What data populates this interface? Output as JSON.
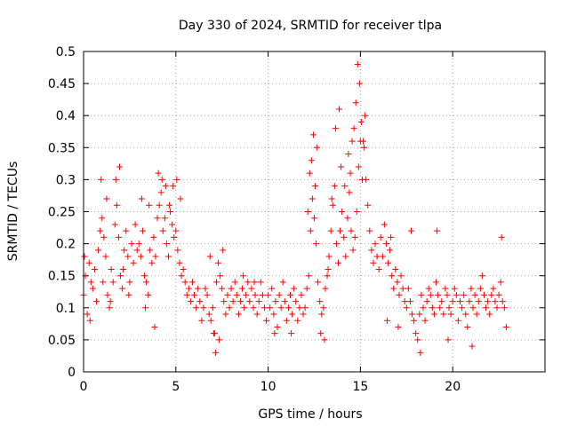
{
  "chart_data": {
    "type": "scatter",
    "title": "Day 330 of 2024, SRMTID for receiver tlpa",
    "xlabel": "GPS time / hours",
    "ylabel": "SRMTID / TECUs",
    "xlim": [
      0,
      25
    ],
    "ylim": [
      0,
      0.5
    ],
    "xticks": [
      0,
      5,
      10,
      15,
      20
    ],
    "xtick_labels": [
      "0",
      "5",
      "10",
      "15",
      "20"
    ],
    "yticks": [
      0,
      0.05,
      0.1,
      0.15,
      0.2,
      0.25,
      0.3,
      0.35,
      0.4,
      0.45,
      0.5
    ],
    "ytick_labels": [
      "0",
      "0.05",
      "0.1",
      "0.15",
      "0.2",
      "0.25",
      "0.3",
      "0.35",
      "0.4",
      "0.45",
      "0.5"
    ],
    "grid": true,
    "marker": "+",
    "color": "#ff0000",
    "series": [
      {
        "name": "SRMTID",
        "x": [
          0.0,
          0.1,
          0.2,
          0.3,
          0.4,
          0.5,
          0.6,
          0.7,
          0.8,
          0.9,
          1.0,
          1.1,
          1.2,
          1.3,
          1.4,
          1.5,
          1.6,
          1.7,
          1.8,
          1.9,
          2.0,
          2.1,
          2.2,
          2.3,
          2.4,
          2.5,
          2.6,
          2.7,
          2.8,
          2.9,
          3.0,
          3.1,
          3.2,
          3.3,
          3.4,
          3.5,
          3.6,
          3.7,
          3.8,
          3.9,
          4.0,
          4.1,
          4.2,
          4.3,
          4.4,
          4.5,
          4.6,
          4.7,
          4.8,
          4.9,
          5.0,
          5.1,
          5.2,
          5.3,
          5.4,
          5.5,
          5.6,
          5.7,
          5.8,
          5.9,
          6.0,
          6.1,
          6.2,
          6.3,
          6.4,
          6.5,
          6.6,
          6.7,
          6.8,
          6.9,
          7.0,
          7.1,
          7.2,
          7.3,
          7.4,
          7.5,
          7.6,
          7.7,
          7.8,
          7.9,
          8.0,
          8.1,
          8.2,
          8.3,
          8.4,
          8.5,
          8.6,
          8.7,
          8.8,
          8.9,
          9.0,
          9.1,
          9.2,
          9.3,
          9.4,
          9.5,
          9.6,
          9.7,
          9.8,
          9.9,
          10.0,
          10.1,
          10.2,
          10.3,
          10.4,
          10.5,
          10.6,
          10.7,
          10.8,
          10.9,
          11.0,
          11.1,
          11.2,
          11.3,
          11.4,
          11.5,
          11.6,
          11.7,
          11.8,
          11.9,
          12.0,
          12.1,
          12.2,
          12.3,
          12.4,
          12.5,
          12.6,
          12.7,
          12.8,
          12.9,
          13.0,
          13.1,
          13.2,
          13.3,
          13.4,
          13.5,
          13.6,
          13.7,
          13.8,
          13.9,
          14.0,
          14.1,
          14.2,
          14.3,
          14.4,
          14.5,
          14.6,
          14.7,
          14.8,
          14.9,
          15.0,
          15.1,
          15.2,
          15.3,
          15.4,
          15.5,
          15.6,
          15.7,
          15.8,
          15.9,
          16.0,
          16.1,
          16.2,
          16.3,
          16.4,
          16.5,
          16.6,
          16.7,
          16.8,
          16.9,
          17.0,
          17.1,
          17.2,
          17.3,
          17.4,
          17.5,
          17.6,
          17.7,
          17.8,
          17.9,
          18.0,
          18.1,
          18.2,
          18.3,
          18.4,
          18.5,
          18.6,
          18.7,
          18.8,
          18.9,
          19.0,
          19.1,
          19.2,
          19.3,
          19.4,
          19.5,
          19.6,
          19.7,
          19.8,
          19.9,
          20.0,
          20.1,
          20.2,
          20.3,
          20.4,
          20.5,
          20.6,
          20.7,
          20.8,
          20.9,
          21.0,
          21.1,
          21.2,
          21.3,
          21.4,
          21.5,
          21.6,
          21.7,
          21.8,
          21.9,
          22.0,
          22.1,
          22.2,
          22.3,
          22.4,
          22.5,
          22.6,
          22.7,
          22.8,
          22.9,
          0.05,
          0.35,
          0.95,
          1.05,
          1.25,
          1.45,
          1.75,
          1.95,
          2.15,
          2.45,
          3.15,
          3.35,
          3.55,
          3.85,
          4.05,
          4.25,
          4.45,
          4.65,
          4.85,
          5.05,
          5.25,
          6.85,
          7.05,
          7.15,
          7.35,
          7.55,
          8.65,
          9.25,
          10.35,
          11.25,
          12.15,
          12.25,
          12.35,
          12.45,
          12.55,
          12.65,
          12.85,
          13.05,
          13.25,
          13.45,
          13.65,
          13.85,
          13.95,
          14.15,
          14.35,
          14.45,
          14.55,
          14.65,
          14.75,
          14.85,
          14.95,
          15.05,
          15.15,
          15.25,
          16.45,
          16.65,
          17.05,
          17.75,
          18.25,
          19.15,
          19.75,
          21.05,
          22.65
        ],
        "y": [
          0.12,
          0.15,
          0.09,
          0.17,
          0.14,
          0.13,
          0.16,
          0.11,
          0.19,
          0.22,
          0.24,
          0.21,
          0.18,
          0.12,
          0.1,
          0.16,
          0.14,
          0.23,
          0.26,
          0.21,
          0.15,
          0.13,
          0.19,
          0.22,
          0.18,
          0.14,
          0.2,
          0.17,
          0.23,
          0.19,
          0.2,
          0.18,
          0.22,
          0.15,
          0.14,
          0.12,
          0.19,
          0.17,
          0.21,
          0.18,
          0.24,
          0.26,
          0.28,
          0.22,
          0.24,
          0.2,
          0.18,
          0.25,
          0.23,
          0.21,
          0.22,
          0.19,
          0.17,
          0.15,
          0.16,
          0.14,
          0.12,
          0.13,
          0.11,
          0.14,
          0.12,
          0.1,
          0.13,
          0.11,
          0.08,
          0.1,
          0.13,
          0.12,
          0.09,
          0.08,
          0.1,
          0.06,
          0.14,
          0.17,
          0.15,
          0.13,
          0.11,
          0.09,
          0.12,
          0.1,
          0.13,
          0.11,
          0.14,
          0.12,
          0.09,
          0.11,
          0.13,
          0.1,
          0.12,
          0.14,
          0.11,
          0.13,
          0.1,
          0.12,
          0.09,
          0.11,
          0.14,
          0.12,
          0.1,
          0.08,
          0.12,
          0.1,
          0.13,
          0.09,
          0.11,
          0.07,
          0.12,
          0.1,
          0.14,
          0.11,
          0.08,
          0.1,
          0.12,
          0.09,
          0.13,
          0.11,
          0.08,
          0.1,
          0.12,
          0.09,
          0.1,
          0.13,
          0.15,
          0.22,
          0.27,
          0.24,
          0.2,
          0.14,
          0.11,
          0.09,
          0.1,
          0.13,
          0.15,
          0.18,
          0.22,
          0.26,
          0.29,
          0.2,
          0.17,
          0.22,
          0.25,
          0.21,
          0.18,
          0.24,
          0.28,
          0.22,
          0.19,
          0.21,
          0.25,
          0.32,
          0.36,
          0.3,
          0.35,
          0.3,
          0.26,
          0.22,
          0.19,
          0.17,
          0.2,
          0.18,
          0.16,
          0.21,
          0.18,
          0.23,
          0.2,
          0.17,
          0.19,
          0.15,
          0.13,
          0.16,
          0.14,
          0.12,
          0.15,
          0.13,
          0.11,
          0.1,
          0.13,
          0.11,
          0.09,
          0.08,
          0.06,
          0.05,
          0.09,
          0.12,
          0.1,
          0.08,
          0.11,
          0.13,
          0.12,
          0.1,
          0.09,
          0.14,
          0.12,
          0.1,
          0.11,
          0.09,
          0.13,
          0.12,
          0.1,
          0.09,
          0.11,
          0.13,
          0.12,
          0.08,
          0.11,
          0.1,
          0.12,
          0.09,
          0.07,
          0.11,
          0.13,
          0.1,
          0.12,
          0.09,
          0.11,
          0.13,
          0.15,
          0.12,
          0.1,
          0.11,
          0.09,
          0.12,
          0.13,
          0.11,
          0.1,
          0.12,
          0.14,
          0.11,
          0.1,
          0.07,
          0.18,
          0.08,
          0.3,
          0.14,
          0.27,
          0.11,
          0.3,
          0.32,
          0.16,
          0.12,
          0.27,
          0.1,
          0.26,
          0.07,
          0.31,
          0.3,
          0.29,
          0.26,
          0.29,
          0.3,
          0.27,
          0.18,
          0.06,
          0.03,
          0.05,
          0.19,
          0.15,
          0.14,
          0.06,
          0.06,
          0.25,
          0.31,
          0.33,
          0.37,
          0.29,
          0.35,
          0.06,
          0.05,
          0.16,
          0.27,
          0.38,
          0.41,
          0.32,
          0.29,
          0.34,
          0.31,
          0.36,
          0.38,
          0.42,
          0.48,
          0.45,
          0.39,
          0.36,
          0.4,
          0.08,
          0.21,
          0.07,
          0.22,
          0.03,
          0.22,
          0.05,
          0.04,
          0.21
        ]
      }
    ]
  }
}
